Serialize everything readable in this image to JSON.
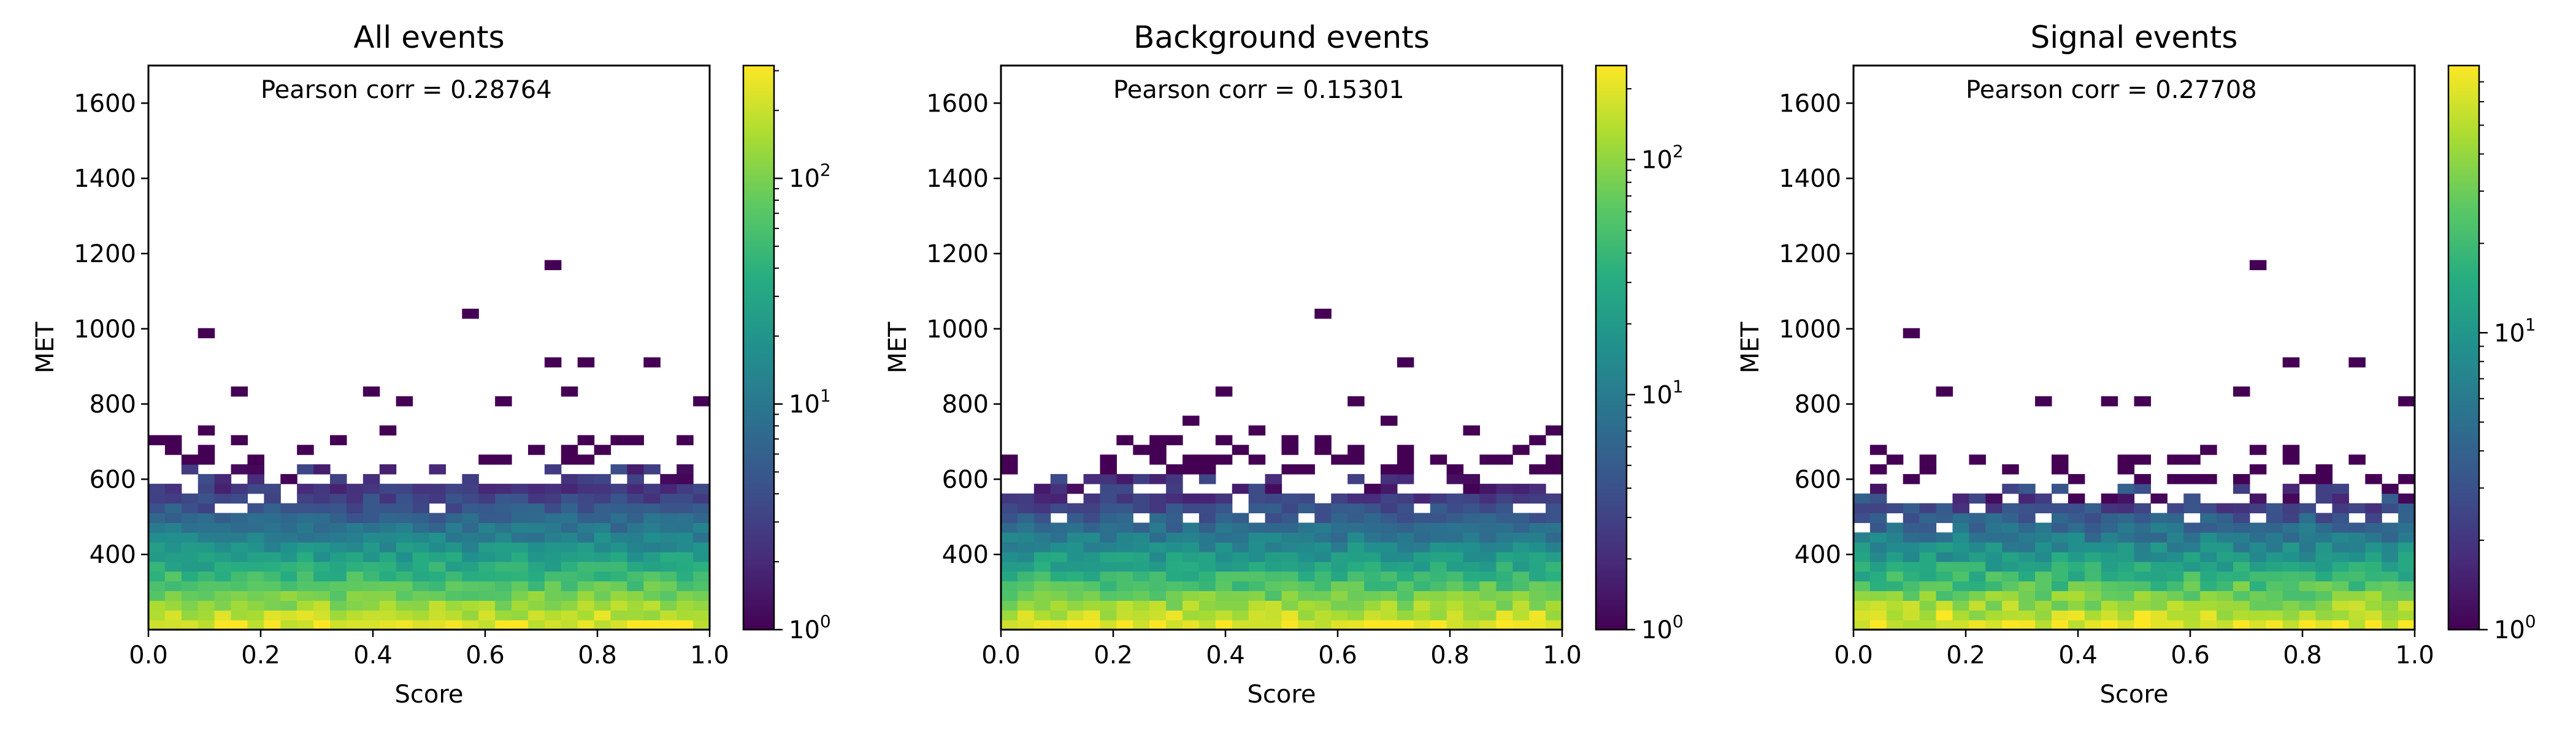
{
  "chart_data": [
    {
      "type": "heatmap",
      "title": "All events",
      "xlabel": "Score",
      "ylabel": "MET",
      "xlim": [
        0,
        1
      ],
      "ylim": [
        200,
        1700
      ],
      "xticks": [
        "0.0",
        "0.2",
        "0.4",
        "0.6",
        "0.8",
        "1.0"
      ],
      "yticks": [
        "400",
        "600",
        "800",
        "1000",
        "1200",
        "1400",
        "1600"
      ],
      "annotation": "Pearson corr = 0.28764",
      "colorscale": "viridis (log)",
      "colorbar": {
        "log_min": 0,
        "log_max": 2.5,
        "ticks": [
          {
            "base": "10",
            "exp": "0",
            "v": 0
          },
          {
            "base": "10",
            "exp": "1",
            "v": 1
          },
          {
            "base": "10",
            "exp": "2",
            "v": 2
          }
        ]
      },
      "bins": {
        "nx": 34,
        "ny": 58
      },
      "peak_count": 300,
      "core_top_met": 580,
      "seed": 11,
      "sparse_points": [
        [
          0.09,
          990
        ],
        [
          0.58,
          1030
        ],
        [
          0.71,
          1180
        ],
        [
          0.71,
          910
        ],
        [
          0.79,
          910
        ],
        [
          0.91,
          910
        ],
        [
          0.17,
          840
        ],
        [
          0.39,
          840
        ],
        [
          0.47,
          800
        ],
        [
          0.64,
          800
        ],
        [
          0.75,
          840
        ],
        [
          1.0,
          800
        ]
      ]
    },
    {
      "type": "heatmap",
      "title": "Background events",
      "xlabel": "Score",
      "ylabel": "MET",
      "xlim": [
        0,
        1
      ],
      "ylim": [
        200,
        1700
      ],
      "xticks": [
        "0.0",
        "0.2",
        "0.4",
        "0.6",
        "0.8",
        "1.0"
      ],
      "yticks": [
        "400",
        "600",
        "800",
        "1000",
        "1200",
        "1400",
        "1600"
      ],
      "annotation": "Pearson corr = 0.15301",
      "colorscale": "viridis (log)",
      "colorbar": {
        "log_min": 0,
        "log_max": 2.4,
        "ticks": [
          {
            "base": "10",
            "exp": "0",
            "v": 0
          },
          {
            "base": "10",
            "exp": "1",
            "v": 1
          },
          {
            "base": "10",
            "exp": "2",
            "v": 2
          }
        ]
      },
      "bins": {
        "nx": 34,
        "ny": 58
      },
      "peak_count": 250,
      "core_top_met": 560,
      "seed": 23,
      "sparse_points": [
        [
          0.58,
          1030
        ],
        [
          0.71,
          910
        ],
        [
          0.4,
          840
        ],
        [
          0.35,
          760
        ],
        [
          0.47,
          720
        ],
        [
          0.62,
          800
        ],
        [
          0.85,
          720
        ],
        [
          0.98,
          720
        ],
        [
          0.68,
          760
        ]
      ]
    },
    {
      "type": "heatmap",
      "title": "Signal events",
      "xlabel": "Score",
      "ylabel": "MET",
      "xlim": [
        0,
        1
      ],
      "ylim": [
        200,
        1700
      ],
      "xticks": [
        "0.0",
        "0.2",
        "0.4",
        "0.6",
        "0.8",
        "1.0"
      ],
      "yticks": [
        "400",
        "600",
        "800",
        "1000",
        "1200",
        "1400",
        "1600"
      ],
      "annotation": "Pearson corr = 0.27708",
      "colorscale": "viridis (log)",
      "colorbar": {
        "log_min": 0,
        "log_max": 1.9,
        "ticks": [
          {
            "base": "10",
            "exp": "0",
            "v": 0
          },
          {
            "base": "10",
            "exp": "1",
            "v": 1
          }
        ]
      },
      "bins": {
        "nx": 34,
        "ny": 58
      },
      "peak_count": 80,
      "core_top_met": 540,
      "seed": 37,
      "sparse_points": [
        [
          0.09,
          990
        ],
        [
          0.71,
          1180
        ],
        [
          0.79,
          910
        ],
        [
          0.91,
          910
        ],
        [
          0.17,
          840
        ],
        [
          0.47,
          800
        ],
        [
          0.52,
          800
        ],
        [
          0.68,
          840
        ],
        [
          1.0,
          800
        ],
        [
          0.35,
          800
        ]
      ]
    }
  ]
}
